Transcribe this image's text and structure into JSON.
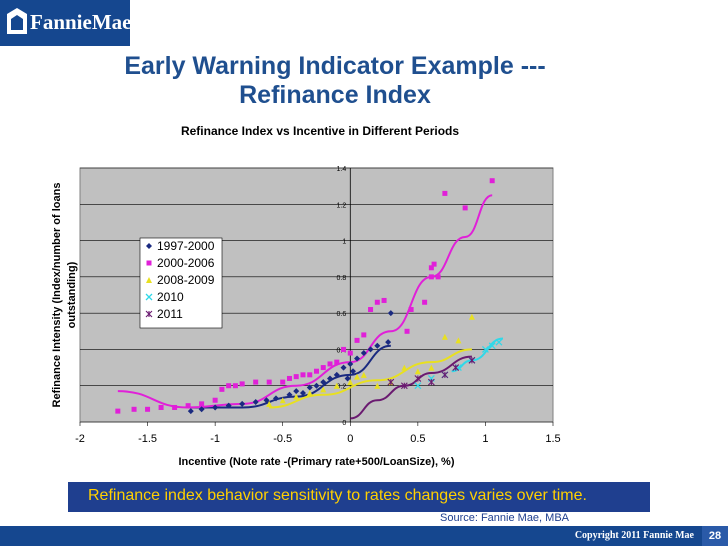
{
  "logo": {
    "text": "FannieMae"
  },
  "slide": {
    "title_line1": "Early Warning Indicator Example ---",
    "title_line2": "Refinance Index",
    "banner": "Refinance index behavior sensitivity to rates changes varies over time.",
    "source": "Source: Fannie Mae, MBA",
    "copyright": "Copyright 2011 Fannie Mae",
    "page": "28"
  },
  "colors": {
    "brand": "#15478f",
    "title": "#1f4f8f",
    "banner_bg": "#1f3f8f",
    "banner_text": "#ffd000",
    "plot_bg": "#c0c0c0"
  },
  "chart_data": {
    "type": "scatter",
    "title": "Refinance Index vs Incentive in Different Periods",
    "xlabel": "Incentive (Note rate -(Primary rate+500/LoanSize), %)",
    "ylabel": "Refinance Intensity (Index/number of loans outstanding)",
    "xlim": [
      -2,
      1.5
    ],
    "ylim": [
      0,
      1.4
    ],
    "xticks": [
      "-2",
      "-1.5",
      "-1",
      "-0.5",
      "0",
      "0.5",
      "1",
      "1.5"
    ],
    "yticks": [
      "0",
      "0.2",
      "0.4",
      "0.6",
      "0.8",
      "1",
      "1.2",
      "1.4"
    ],
    "grid": "horizontal",
    "legend_position": "upper-left",
    "series": [
      {
        "name": "1997-2000",
        "color": "#1a2a80",
        "marker": "diamond",
        "points": [
          [
            -1.18,
            0.06
          ],
          [
            -1.1,
            0.07
          ],
          [
            -1.0,
            0.08
          ],
          [
            -0.9,
            0.09
          ],
          [
            -0.8,
            0.1
          ],
          [
            -0.7,
            0.11
          ],
          [
            -0.62,
            0.12
          ],
          [
            -0.55,
            0.13
          ],
          [
            -0.45,
            0.15
          ],
          [
            -0.4,
            0.17
          ],
          [
            -0.35,
            0.16
          ],
          [
            -0.3,
            0.19
          ],
          [
            -0.25,
            0.2
          ],
          [
            -0.2,
            0.22
          ],
          [
            -0.15,
            0.24
          ],
          [
            -0.1,
            0.26
          ],
          [
            -0.05,
            0.3
          ],
          [
            0.0,
            0.32
          ],
          [
            0.05,
            0.35
          ],
          [
            0.1,
            0.38
          ],
          [
            0.15,
            0.4
          ],
          [
            0.2,
            0.42
          ],
          [
            0.28,
            0.44
          ],
          [
            0.3,
            0.6
          ],
          [
            -0.02,
            0.24
          ],
          [
            0.02,
            0.28
          ]
        ],
        "fit": [
          [
            -1.2,
            0.08
          ],
          [
            -0.8,
            0.08
          ],
          [
            -0.4,
            0.14
          ],
          [
            0.0,
            0.26
          ],
          [
            0.3,
            0.42
          ]
        ]
      },
      {
        "name": "2000-2006",
        "color": "#e020d8",
        "marker": "square",
        "points": [
          [
            -1.72,
            0.06
          ],
          [
            -1.6,
            0.07
          ],
          [
            -1.5,
            0.07
          ],
          [
            -1.4,
            0.08
          ],
          [
            -1.3,
            0.08
          ],
          [
            -1.2,
            0.09
          ],
          [
            -1.1,
            0.1
          ],
          [
            -1.0,
            0.12
          ],
          [
            -0.95,
            0.18
          ],
          [
            -0.9,
            0.2
          ],
          [
            -0.85,
            0.2
          ],
          [
            -0.8,
            0.21
          ],
          [
            -0.7,
            0.22
          ],
          [
            -0.6,
            0.22
          ],
          [
            -0.5,
            0.22
          ],
          [
            -0.45,
            0.24
          ],
          [
            -0.4,
            0.25
          ],
          [
            -0.35,
            0.26
          ],
          [
            -0.3,
            0.26
          ],
          [
            -0.25,
            0.28
          ],
          [
            -0.2,
            0.3
          ],
          [
            -0.15,
            0.32
          ],
          [
            -0.1,
            0.33
          ],
          [
            -0.05,
            0.4
          ],
          [
            0.0,
            0.38
          ],
          [
            0.05,
            0.45
          ],
          [
            0.1,
            0.48
          ],
          [
            0.15,
            0.62
          ],
          [
            0.2,
            0.66
          ],
          [
            0.25,
            0.67
          ],
          [
            0.42,
            0.5
          ],
          [
            0.45,
            0.62
          ],
          [
            0.55,
            0.66
          ],
          [
            0.6,
            0.8
          ],
          [
            0.6,
            0.85
          ],
          [
            0.62,
            0.87
          ],
          [
            0.65,
            0.8
          ],
          [
            0.7,
            1.26
          ],
          [
            0.85,
            1.18
          ],
          [
            1.05,
            1.33
          ]
        ],
        "fit": [
          [
            -1.72,
            0.17
          ],
          [
            -1.2,
            0.08
          ],
          [
            -0.8,
            0.1
          ],
          [
            -0.4,
            0.2
          ],
          [
            0.0,
            0.33
          ],
          [
            0.3,
            0.5
          ],
          [
            0.6,
            0.8
          ],
          [
            0.85,
            1.02
          ],
          [
            1.05,
            1.25
          ]
        ]
      },
      {
        "name": "2008-2009",
        "color": "#e8e020",
        "marker": "triangle",
        "points": [
          [
            -0.6,
            0.1
          ],
          [
            -0.5,
            0.12
          ],
          [
            -0.4,
            0.14
          ],
          [
            -0.3,
            0.16
          ],
          [
            -0.2,
            0.18
          ],
          [
            -0.1,
            0.2
          ],
          [
            0.0,
            0.22
          ],
          [
            0.05,
            0.25
          ],
          [
            0.1,
            0.26
          ],
          [
            0.2,
            0.2
          ],
          [
            0.3,
            0.22
          ],
          [
            0.4,
            0.3
          ],
          [
            0.5,
            0.28
          ],
          [
            0.6,
            0.3
          ],
          [
            0.7,
            0.47
          ],
          [
            0.8,
            0.45
          ],
          [
            0.9,
            0.58
          ]
        ],
        "fit": [
          [
            -0.6,
            0.08
          ],
          [
            -0.2,
            0.15
          ],
          [
            0.2,
            0.23
          ],
          [
            0.6,
            0.33
          ],
          [
            0.9,
            0.4
          ]
        ]
      },
      {
        "name": "2010",
        "color": "#30d8e8",
        "marker": "x",
        "points": [
          [
            0.5,
            0.2
          ],
          [
            0.6,
            0.24
          ],
          [
            0.7,
            0.26
          ],
          [
            0.8,
            0.3
          ],
          [
            0.9,
            0.34
          ],
          [
            1.0,
            0.4
          ],
          [
            1.05,
            0.42
          ],
          [
            1.1,
            0.44
          ]
        ],
        "fit": [
          [
            0.75,
            0.28
          ],
          [
            0.9,
            0.34
          ],
          [
            1.13,
            0.46
          ]
        ]
      },
      {
        "name": "2011",
        "color": "#6a1a70",
        "marker": "star",
        "points": [
          [
            0.3,
            0.22
          ],
          [
            0.4,
            0.2
          ],
          [
            0.5,
            0.24
          ],
          [
            0.6,
            0.22
          ],
          [
            0.7,
            0.26
          ],
          [
            0.78,
            0.3
          ],
          [
            0.9,
            0.34
          ]
        ],
        "fit": [
          [
            0.0,
            0.02
          ],
          [
            0.2,
            0.12
          ],
          [
            0.4,
            0.2
          ],
          [
            0.6,
            0.27
          ],
          [
            0.9,
            0.36
          ]
        ]
      }
    ]
  }
}
